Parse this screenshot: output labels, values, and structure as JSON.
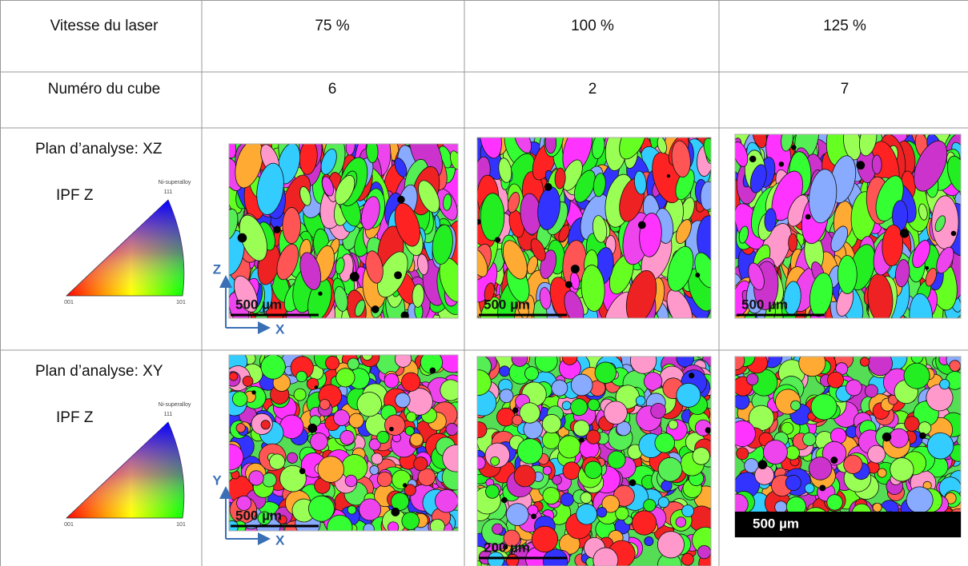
{
  "table": {
    "rows": [
      [
        "Vitesse du laser",
        "75 %",
        "100 %",
        "125 %"
      ],
      [
        "Numéro du cube",
        "6",
        "2",
        "7"
      ]
    ],
    "sections": [
      {
        "plane": "Plan d’analyse: XZ",
        "legend": {
          "title": "IPF Z",
          "material": "Ni-superalloy",
          "corners": [
            "111",
            "001",
            "101"
          ]
        },
        "axes": [
          "Z",
          "X"
        ],
        "scale_bars": [
          "500 µm",
          "500 µm",
          "500 µm"
        ]
      },
      {
        "plane": "Plan d’analyse: XY",
        "legend": {
          "title": "IPF Z",
          "material": "Ni-superalloy",
          "corners": [
            "111",
            "001",
            "101"
          ]
        },
        "axes": [
          "Y",
          "X"
        ],
        "scale_bars": [
          "500 µm",
          "200 µm",
          "500 µm"
        ]
      }
    ]
  }
}
